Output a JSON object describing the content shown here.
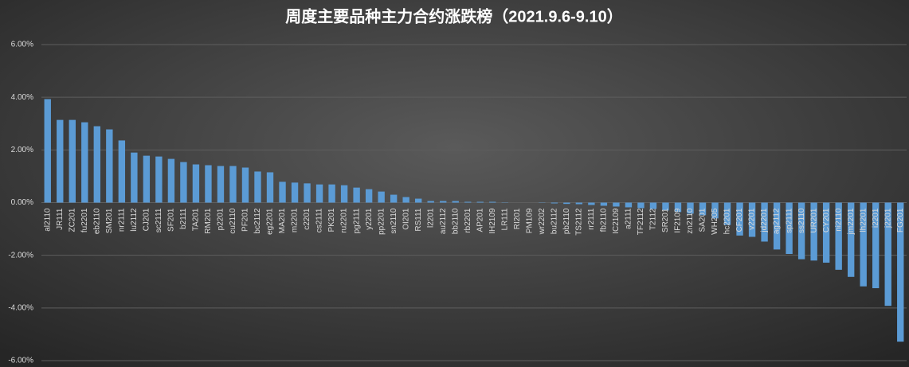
{
  "chart_data": {
    "type": "bar",
    "title": "周度主要品种主力合约涨跌榜（2021.9.6-9.10）",
    "categories": [
      "al2110",
      "JR111",
      "ZC201",
      "fu2201",
      "eb2110",
      "SM201",
      "nr2111",
      "lu2112",
      "CJ201",
      "sc2111",
      "SF201",
      "b2111",
      "TA201",
      "RM201",
      "p2201",
      "cu2110",
      "PF201",
      "bc2112",
      "eg2201",
      "MA201",
      "m2201",
      "c2201",
      "cs2111",
      "PK201",
      "ru2201",
      "pg2111",
      "y2201",
      "pp2201",
      "sn2110",
      "OI201",
      "RS111",
      "l2201",
      "au2112",
      "bb2110",
      "rb2201",
      "AP201",
      "IH2109",
      "LR111",
      "RI201",
      "PM109",
      "wr2202",
      "bu2112",
      "pb2110",
      "TS2112",
      "rr2111",
      "fb2110",
      "IC2109",
      "a2111",
      "TF2112",
      "T2112",
      "SR201",
      "IF2109",
      "zn2110",
      "SA201",
      "WH205",
      "hc2201",
      "CF201",
      "v2201",
      "jd2201",
      "ag2112",
      "sp2111",
      "ss2110",
      "UR201",
      "CY201",
      "ni2110",
      "jm2201",
      "lh2201",
      "i2201",
      "j2201",
      "FG201"
    ],
    "values": [
      3.93,
      3.14,
      3.14,
      3.05,
      2.9,
      2.78,
      2.36,
      1.9,
      1.78,
      1.75,
      1.66,
      1.54,
      1.45,
      1.42,
      1.39,
      1.39,
      1.33,
      1.18,
      1.15,
      0.79,
      0.76,
      0.73,
      0.69,
      0.69,
      0.66,
      0.57,
      0.51,
      0.42,
      0.3,
      0.21,
      0.15,
      0.06,
      0.06,
      0.06,
      0.03,
      0.03,
      0.03,
      0.01,
      0,
      0,
      -0.01,
      -0.03,
      -0.05,
      -0.06,
      -0.09,
      -0.12,
      -0.15,
      -0.18,
      -0.21,
      -0.24,
      -0.3,
      -0.36,
      -0.42,
      -0.48,
      -0.6,
      -0.85,
      -1.25,
      -1.3,
      -1.48,
      -1.78,
      -1.95,
      -2.15,
      -2.2,
      -2.28,
      -2.55,
      -2.82,
      -3.18,
      -3.25,
      -3.92,
      -5.28
    ],
    "color": "#5b9bd5",
    "ylim": [
      -6,
      6
    ],
    "yticks": [
      {
        "value": -6,
        "label": "-6.00%"
      },
      {
        "value": -4,
        "label": "-4.00%"
      },
      {
        "value": -2,
        "label": "-2.00%"
      },
      {
        "value": 0,
        "label": "0.00%"
      },
      {
        "value": 2,
        "label": "2.00%"
      },
      {
        "value": 4,
        "label": "4.00%"
      },
      {
        "value": 6,
        "label": "6.00%"
      }
    ],
    "grid": true
  }
}
